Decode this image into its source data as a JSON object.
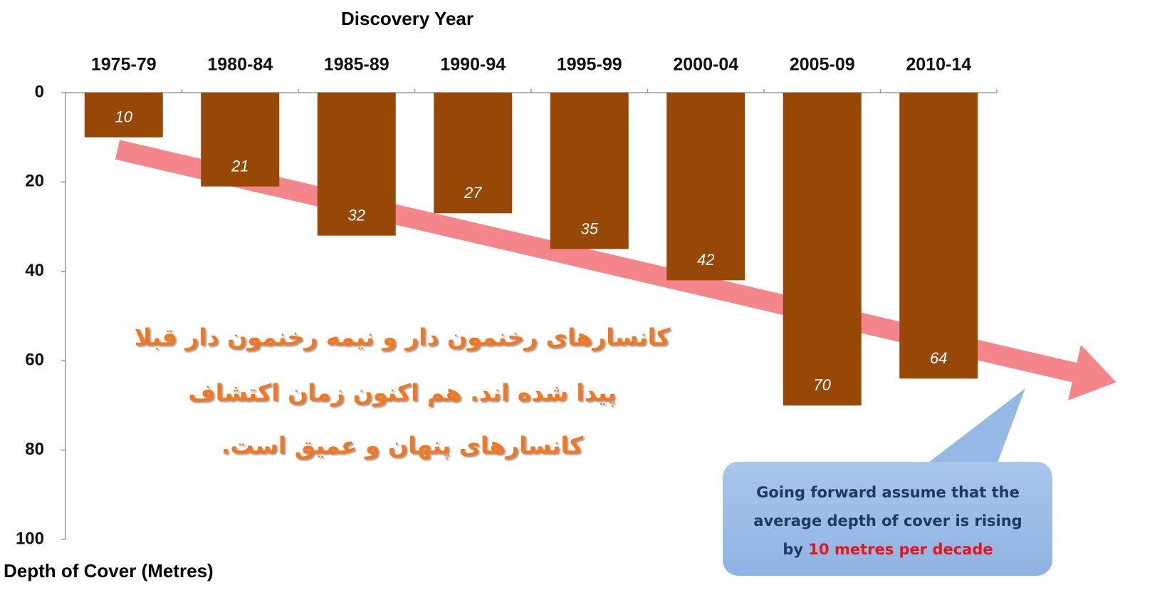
{
  "chart_data": {
    "type": "bar",
    "title": "Discovery Year",
    "y_label": "Depth of Cover (Metres)",
    "categories": [
      "1975-79",
      "1980-84",
      "1985-89",
      "1990-94",
      "1995-99",
      "2000-04",
      "2005-09",
      "2010-14"
    ],
    "values": [
      10,
      21,
      32,
      27,
      35,
      42,
      70,
      64
    ],
    "color": "#974706",
    "ylim": [
      0,
      100
    ],
    "yticks": [
      0,
      20,
      40,
      60,
      80,
      100
    ],
    "y_inverted": true,
    "grid": false,
    "annotation_lines": [
      "کانسارهای رخنمون دار و نیمه رخنمون دار قبلا",
      "پیدا شده اند. هم اکنون زمان اکتشاف",
      "کانسارهای پنهان و عمیق است."
    ],
    "callout": {
      "lines": [
        "Going forward assume that the",
        "average depth of  cover is rising"
      ],
      "prefix": "by",
      "highlight": "10 metres per decade"
    }
  }
}
